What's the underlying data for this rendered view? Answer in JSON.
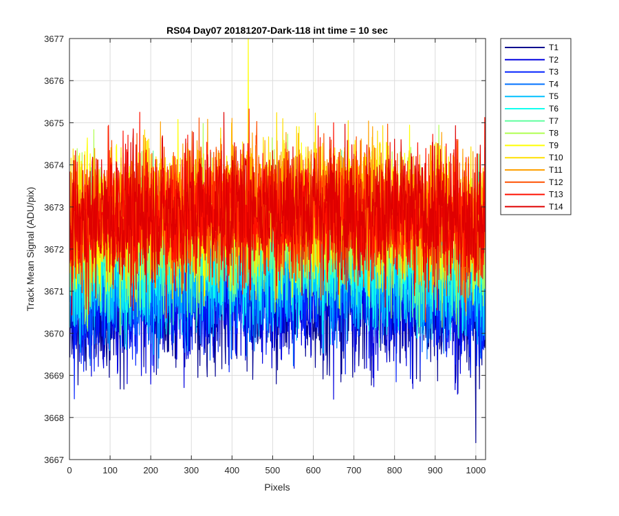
{
  "chart_data": {
    "type": "line",
    "title": "RS04 Day07 20181207-Dark-118 int time = 10 sec",
    "xlabel": "Pixels",
    "ylabel": "Track Mean Signal (ADU/pix)",
    "xlim": [
      0,
      1024
    ],
    "ylim": [
      3667,
      3677
    ],
    "xticks": [
      0,
      100,
      200,
      300,
      400,
      500,
      600,
      700,
      800,
      900,
      1000
    ],
    "yticks": [
      3667,
      3668,
      3669,
      3670,
      3671,
      3672,
      3673,
      3674,
      3675,
      3676,
      3677
    ],
    "grid": true,
    "legend_position": "outside-top-right",
    "x_range": [
      1,
      1024
    ],
    "series": [
      {
        "name": "T1",
        "color": "#00008f",
        "mean": 3670.6,
        "noise_sd": 0.8
      },
      {
        "name": "T2",
        "color": "#0000df",
        "mean": 3670.8,
        "noise_sd": 0.8
      },
      {
        "name": "T3",
        "color": "#0020ff",
        "mean": 3671.0,
        "noise_sd": 0.8
      },
      {
        "name": "T4",
        "color": "#0070ff",
        "mean": 3671.3,
        "noise_sd": 0.8
      },
      {
        "name": "T5",
        "color": "#00c0ff",
        "mean": 3671.5,
        "noise_sd": 0.8
      },
      {
        "name": "T6",
        "color": "#10ffef",
        "mean": 3671.8,
        "noise_sd": 0.8
      },
      {
        "name": "T7",
        "color": "#60ff9f",
        "mean": 3672.1,
        "noise_sd": 0.8
      },
      {
        "name": "T8",
        "color": "#afff50",
        "mean": 3672.4,
        "noise_sd": 0.8
      },
      {
        "name": "T9",
        "color": "#ffff00",
        "mean": 3672.7,
        "noise_sd": 0.8
      },
      {
        "name": "T10",
        "color": "#ffdf00",
        "mean": 3672.9,
        "noise_sd": 0.8
      },
      {
        "name": "T11",
        "color": "#ffa000",
        "mean": 3672.9,
        "noise_sd": 0.8
      },
      {
        "name": "T12",
        "color": "#ff5000",
        "mean": 3672.8,
        "noise_sd": 0.8
      },
      {
        "name": "T13",
        "color": "#ff1000",
        "mean": 3672.7,
        "noise_sd": 0.8
      },
      {
        "name": "T14",
        "color": "#df0000",
        "mean": 3672.8,
        "noise_sd": 0.8
      }
    ],
    "extremes": {
      "max": 3677.0,
      "max_x": 440,
      "min": 3667.4,
      "min_x": 1000
    }
  }
}
